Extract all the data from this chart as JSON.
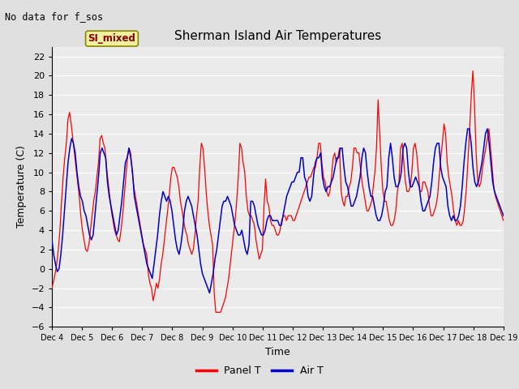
{
  "title": "Sherman Island Air Temperatures",
  "xlabel": "Time",
  "ylabel": "Temperature (C)",
  "ylim": [
    -6,
    23
  ],
  "yticks": [
    -6,
    -4,
    -2,
    0,
    2,
    4,
    6,
    8,
    10,
    12,
    14,
    16,
    18,
    20,
    22
  ],
  "note": "No data for f_sos",
  "legend_label": "SI_mixed",
  "panel_color": "#ff0000",
  "air_color": "#0000cc",
  "plot_bg": "#ebebeb",
  "fig_bg": "#e0e0e0",
  "xtick_labels": [
    "Dec 4",
    "Dec 5",
    "Dec 6",
    "Dec 7",
    "Dec 8",
    "Dec 9",
    "Dec 10",
    "Dec 11",
    "Dec 12",
    "Dec 13",
    "Dec 14",
    "Dec 15",
    "Dec 16",
    "Dec 17",
    "Dec 18",
    "Dec 19"
  ],
  "panel_T": [
    -2.0,
    -1.3,
    -0.5,
    0.5,
    2.0,
    4.0,
    7.0,
    9.5,
    11.5,
    13.0,
    15.5,
    16.2,
    15.0,
    13.5,
    12.0,
    10.5,
    9.0,
    7.5,
    5.5,
    4.0,
    3.0,
    2.0,
    1.8,
    2.5,
    4.0,
    5.5,
    7.0,
    8.0,
    9.5,
    11.0,
    13.5,
    13.8,
    13.0,
    12.5,
    10.5,
    9.0,
    7.5,
    6.0,
    5.0,
    4.0,
    3.5,
    3.0,
    2.8,
    4.0,
    5.5,
    7.5,
    9.5,
    11.5,
    12.5,
    12.0,
    10.0,
    8.5,
    7.5,
    6.5,
    5.5,
    4.5,
    3.5,
    2.5,
    2.0,
    1.5,
    -0.5,
    -1.5,
    -2.0,
    -3.3,
    -2.5,
    -1.5,
    -2.0,
    -1.0,
    0.5,
    1.5,
    3.0,
    4.5,
    6.0,
    7.5,
    9.5,
    10.5,
    10.5,
    10.0,
    9.5,
    8.5,
    7.0,
    6.0,
    5.0,
    4.0,
    3.5,
    2.5,
    2.0,
    1.5,
    2.0,
    3.5,
    5.5,
    7.0,
    10.5,
    13.0,
    12.5,
    10.5,
    8.0,
    6.0,
    4.5,
    3.5,
    2.5,
    -2.5,
    -4.5,
    -4.5,
    -4.5,
    -4.5,
    -4.0,
    -3.5,
    -3.0,
    -2.0,
    -1.0,
    0.5,
    2.0,
    3.5,
    5.0,
    7.0,
    9.5,
    13.0,
    12.5,
    11.0,
    10.0,
    7.5,
    6.0,
    5.5,
    5.5,
    5.0,
    4.5,
    3.0,
    2.0,
    1.0,
    1.5,
    2.0,
    6.5,
    9.3,
    7.0,
    6.5,
    5.0,
    4.5,
    4.5,
    4.0,
    3.5,
    3.5,
    4.0,
    5.0,
    5.5,
    5.5,
    5.0,
    5.5,
    5.5,
    5.5,
    5.0,
    5.0,
    5.5,
    6.0,
    6.5,
    7.0,
    7.5,
    8.0,
    8.5,
    9.0,
    9.5,
    9.5,
    10.0,
    10.5,
    10.5,
    11.5,
    13.0,
    13.0,
    11.0,
    9.5,
    9.0,
    8.0,
    7.5,
    8.0,
    9.5,
    11.5,
    12.0,
    11.0,
    11.5,
    12.5,
    8.0,
    7.0,
    6.5,
    7.5,
    7.5,
    8.5,
    9.0,
    10.5,
    12.5,
    12.5,
    12.0,
    12.0,
    10.5,
    9.0,
    8.0,
    7.0,
    6.0,
    6.0,
    6.5,
    7.0,
    8.5,
    10.0,
    12.5,
    17.5,
    14.0,
    10.5,
    8.0,
    7.0,
    7.0,
    6.0,
    5.0,
    4.5,
    4.5,
    5.0,
    6.0,
    8.0,
    9.0,
    12.5,
    13.0,
    11.0,
    9.0,
    8.0,
    8.0,
    8.5,
    10.0,
    12.5,
    13.0,
    12.0,
    10.0,
    8.0,
    8.0,
    9.0,
    9.0,
    8.5,
    8.0,
    6.5,
    5.5,
    5.5,
    6.0,
    6.5,
    7.5,
    9.5,
    11.5,
    13.0,
    15.0,
    14.0,
    11.0,
    9.5,
    8.5,
    7.5,
    6.0,
    5.0,
    4.5,
    5.0,
    4.5,
    4.5,
    5.0,
    6.5,
    8.5,
    11.5,
    14.5,
    18.0,
    20.5,
    17.0,
    12.0,
    9.0,
    8.5,
    9.0,
    10.5,
    11.5,
    12.5,
    13.5,
    14.5,
    12.5,
    10.5,
    8.5,
    7.5,
    7.0,
    6.5,
    6.0,
    5.5,
    5.0
  ],
  "air_T": [
    3.0,
    1.5,
    0.5,
    -0.3,
    0.0,
    1.5,
    3.5,
    6.0,
    8.5,
    11.0,
    12.5,
    13.5,
    13.0,
    12.0,
    10.0,
    8.5,
    7.5,
    7.0,
    6.0,
    5.5,
    4.5,
    3.5,
    3.0,
    3.5,
    5.5,
    7.5,
    9.5,
    12.0,
    12.5,
    12.0,
    11.5,
    9.0,
    7.5,
    6.5,
    5.5,
    4.5,
    3.5,
    4.0,
    5.5,
    7.0,
    9.0,
    11.0,
    11.5,
    12.5,
    11.5,
    10.0,
    7.5,
    6.5,
    5.5,
    4.5,
    3.5,
    2.5,
    1.5,
    0.5,
    0.0,
    -0.5,
    -1.0,
    0.5,
    2.0,
    3.5,
    5.5,
    7.0,
    8.0,
    7.5,
    7.0,
    7.5,
    7.0,
    6.0,
    4.5,
    3.0,
    2.0,
    1.5,
    2.5,
    4.0,
    6.0,
    7.0,
    7.5,
    7.0,
    6.5,
    5.5,
    4.5,
    3.5,
    2.0,
    0.5,
    -0.5,
    -1.0,
    -1.5,
    -2.0,
    -2.5,
    -1.5,
    -0.5,
    1.0,
    2.0,
    3.5,
    5.0,
    6.5,
    7.0,
    7.0,
    7.5,
    7.0,
    6.5,
    5.5,
    4.5,
    4.0,
    3.5,
    3.5,
    4.0,
    3.0,
    2.0,
    1.5,
    2.5,
    7.0,
    7.0,
    6.5,
    5.5,
    4.5,
    4.0,
    3.5,
    3.5,
    4.0,
    5.0,
    5.5,
    5.5,
    5.0,
    5.0,
    5.0,
    5.0,
    4.5,
    4.5,
    5.5,
    6.5,
    7.5,
    8.0,
    8.5,
    9.0,
    9.0,
    9.5,
    10.0,
    10.0,
    11.5,
    11.5,
    9.5,
    9.0,
    7.5,
    7.0,
    7.5,
    9.5,
    11.0,
    11.5,
    11.5,
    12.0,
    9.5,
    8.5,
    8.0,
    8.5,
    8.5,
    9.0,
    9.5,
    10.5,
    11.5,
    11.5,
    12.5,
    12.5,
    10.5,
    9.0,
    8.5,
    7.5,
    6.5,
    6.5,
    7.0,
    7.5,
    8.5,
    9.5,
    11.5,
    12.5,
    12.0,
    10.0,
    8.5,
    7.5,
    7.5,
    6.5,
    5.5,
    5.0,
    5.0,
    5.5,
    6.5,
    8.0,
    8.5,
    11.5,
    13.0,
    11.5,
    9.5,
    8.5,
    8.5,
    9.0,
    10.0,
    12.5,
    13.0,
    12.5,
    10.0,
    8.5,
    8.5,
    9.0,
    9.5,
    9.0,
    8.5,
    7.0,
    6.0,
    6.0,
    6.5,
    7.0,
    7.5,
    9.0,
    11.0,
    12.5,
    13.0,
    13.0,
    10.5,
    9.5,
    9.0,
    8.5,
    6.5,
    5.5,
    5.0,
    5.5,
    5.0,
    5.0,
    5.5,
    6.5,
    8.5,
    11.0,
    13.0,
    14.5,
    14.5,
    13.0,
    10.5,
    9.0,
    8.5,
    9.0,
    10.0,
    11.0,
    12.5,
    14.0,
    14.5,
    13.0,
    11.0,
    9.0,
    8.0,
    7.5,
    7.0,
    6.5,
    6.0,
    5.5
  ]
}
